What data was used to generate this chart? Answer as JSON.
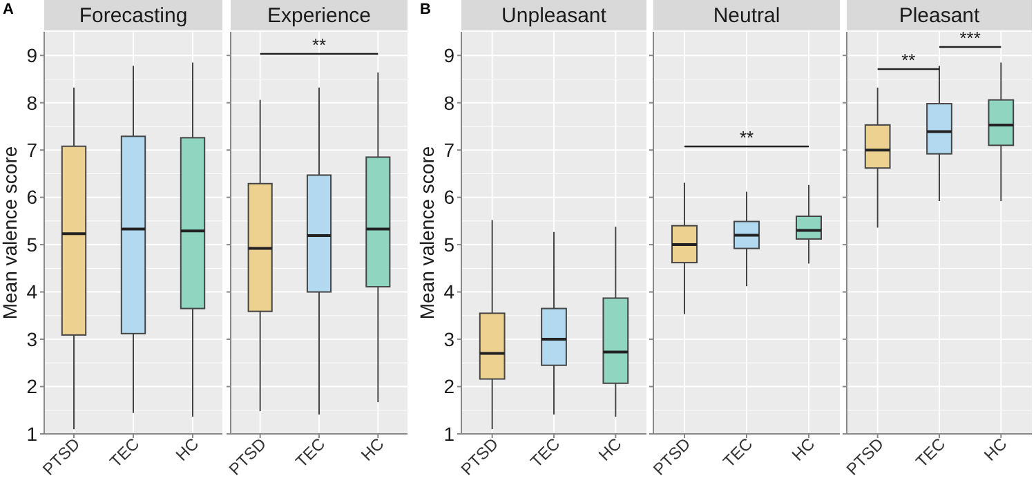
{
  "chart_data": [
    {
      "type": "box",
      "title": "Forecasting",
      "ylabel": "Mean valence score",
      "annotations": [
        "A"
      ],
      "categories": [
        "PTSD",
        "TEC",
        "HC"
      ],
      "colors": [
        "#ecd190",
        "#b2d9ef",
        "#90d5bf"
      ],
      "ylim": [
        1,
        9.5
      ],
      "yticks": [
        1,
        2,
        3,
        4,
        5,
        6,
        7,
        8,
        9
      ],
      "grid": true,
      "boxes": [
        {
          "low": 1.1,
          "q1": 3.09,
          "median": 5.23,
          "q3": 7.08,
          "high": 8.32
        },
        {
          "low": 1.44,
          "q1": 3.12,
          "median": 5.33,
          "q3": 7.29,
          "high": 8.78
        },
        {
          "low": 1.36,
          "q1": 3.65,
          "median": 5.29,
          "q3": 7.26,
          "high": 8.85
        }
      ]
    },
    {
      "type": "box",
      "title": "Experience",
      "annotations": [
        "**"
      ],
      "categories": [
        "PTSD",
        "TEC",
        "HC"
      ],
      "colors": [
        "#ecd190",
        "#b2d9ef",
        "#90d5bf"
      ],
      "ylim": [
        1,
        9.5
      ],
      "yticks": [
        1,
        2,
        3,
        4,
        5,
        6,
        7,
        8,
        9
      ],
      "grid": true,
      "tick_labels": "x",
      "boxes": [
        {
          "low": 1.48,
          "q1": 3.59,
          "median": 4.92,
          "q3": 6.29,
          "high": 8.06
        },
        {
          "low": 1.41,
          "q1": 4.0,
          "median": 5.19,
          "q3": 6.47,
          "high": 8.32
        },
        {
          "low": 1.67,
          "q1": 4.11,
          "median": 5.33,
          "q3": 6.85,
          "high": 8.64
        }
      ]
    },
    {
      "type": "box",
      "title": "Unpleasant",
      "ylabel": "Mean valence score",
      "annotations": [
        "B"
      ],
      "categories": [
        "PTSD",
        "TEC",
        "HC"
      ],
      "colors": [
        "#ecd190",
        "#b2d9ef",
        "#90d5bf"
      ],
      "ylim": [
        1,
        9.5
      ],
      "yticks": [
        1,
        2,
        3,
        4,
        5,
        6,
        7,
        8,
        9
      ],
      "grid": true,
      "boxes": [
        {
          "low": 1.1,
          "q1": 2.16,
          "median": 2.7,
          "q3": 3.55,
          "high": 5.52
        },
        {
          "low": 1.41,
          "q1": 2.45,
          "median": 3.0,
          "q3": 3.65,
          "high": 5.27
        },
        {
          "low": 1.36,
          "q1": 2.07,
          "median": 2.73,
          "q3": 3.87,
          "high": 5.38
        }
      ]
    },
    {
      "type": "box",
      "title": "Neutral",
      "annotations": [
        "**"
      ],
      "categories": [
        "PTSD",
        "TEC",
        "HC"
      ],
      "colors": [
        "#ecd190",
        "#b2d9ef",
        "#90d5bf"
      ],
      "ylim": [
        1,
        9.5
      ],
      "yticks": [
        1,
        2,
        3,
        4,
        5,
        6,
        7,
        8,
        9
      ],
      "grid": true,
      "tick_labels": "x",
      "boxes": [
        {
          "low": 3.53,
          "q1": 4.62,
          "median": 5.0,
          "q3": 5.4,
          "high": 6.31
        },
        {
          "low": 4.12,
          "q1": 4.92,
          "median": 5.2,
          "q3": 5.49,
          "high": 6.12
        },
        {
          "low": 4.6,
          "q1": 5.12,
          "median": 5.3,
          "q3": 5.6,
          "high": 6.26
        }
      ]
    },
    {
      "type": "box",
      "title": "Pleasant",
      "annotations": [
        "**",
        "***"
      ],
      "categories": [
        "PTSD",
        "TEC",
        "HC"
      ],
      "colors": [
        "#ecd190",
        "#b2d9ef",
        "#90d5bf"
      ],
      "ylim": [
        1,
        9.5
      ],
      "yticks": [
        1,
        2,
        3,
        4,
        5,
        6,
        7,
        8,
        9
      ],
      "grid": true,
      "tick_labels": "x",
      "boxes": [
        {
          "low": 5.36,
          "q1": 6.62,
          "median": 7.0,
          "q3": 7.53,
          "high": 8.32
        },
        {
          "low": 5.92,
          "q1": 6.92,
          "median": 7.39,
          "q3": 7.98,
          "high": 8.78
        },
        {
          "low": 5.92,
          "q1": 7.1,
          "median": 7.53,
          "q3": 8.06,
          "high": 8.85
        }
      ]
    }
  ]
}
